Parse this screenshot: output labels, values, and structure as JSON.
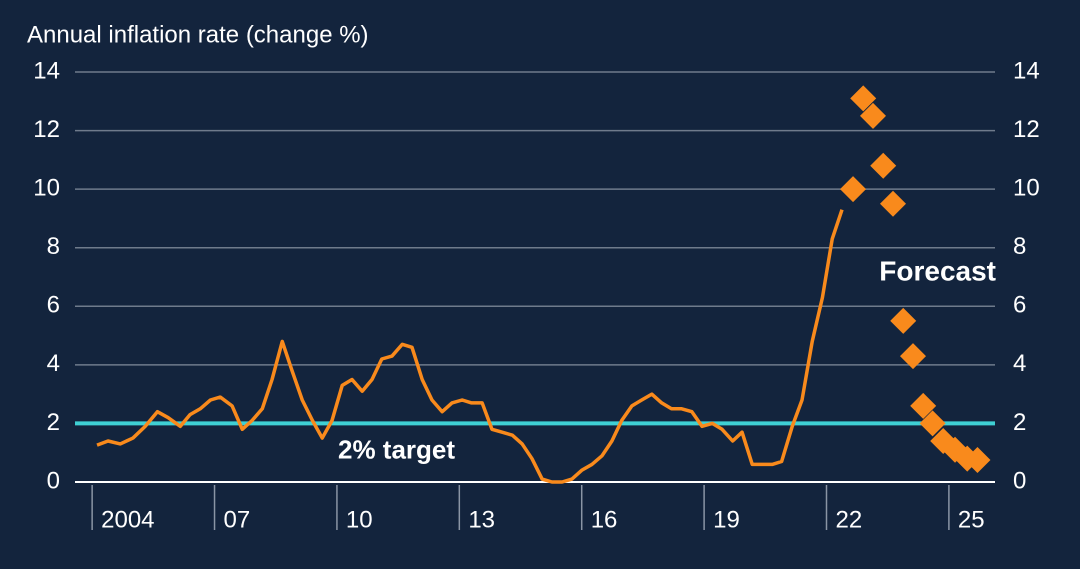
{
  "chart_data": {
    "type": "line",
    "title": "Annual inflation rate (change %)",
    "xlim": [
      2003.58,
      2026.13
    ],
    "xticks": [
      2004,
      {
        "value": 2007,
        "label": "07"
      },
      {
        "value": 2010,
        "label": "10"
      },
      {
        "value": 2013,
        "label": "13"
      },
      {
        "value": 2016,
        "label": "16"
      },
      {
        "value": 2019,
        "label": "19"
      },
      {
        "value": 2022,
        "label": "22"
      },
      {
        "value": 2025,
        "label": "25"
      }
    ],
    "ylim": [
      0,
      14
    ],
    "yticks": [
      0,
      2,
      4,
      6,
      8,
      10,
      12,
      14
    ],
    "y2lim": [
      0,
      14
    ],
    "y2ticks": [
      0,
      2,
      4,
      6,
      8,
      10,
      12,
      14
    ],
    "grid": true,
    "target": {
      "value": 2,
      "label": "2% target",
      "color": "#3fd0d4"
    },
    "series": [
      {
        "color": "#f98a1c",
        "marker": "none",
        "x": [
          2004.12,
          2004.39,
          2004.69,
          2005.0,
          2005.3,
          2005.6,
          2005.86,
          2006.16,
          2006.4,
          2006.65,
          2006.9,
          2007.14,
          2007.43,
          2007.68,
          2007.92,
          2008.17,
          2008.41,
          2008.66,
          2008.9,
          2009.15,
          2009.4,
          2009.64,
          2009.88,
          2010.13,
          2010.37,
          2010.62,
          2010.86,
          2011.1,
          2011.35,
          2011.6,
          2011.84,
          2012.09,
          2012.33,
          2012.58,
          2012.82,
          2013.07,
          2013.3,
          2013.56,
          2013.8,
          2014.05,
          2014.3,
          2014.54,
          2014.78,
          2015.03,
          2015.27,
          2015.52,
          2015.76,
          2016.0,
          2016.25,
          2016.5,
          2016.74,
          2016.98,
          2017.23,
          2017.47,
          2017.72,
          2017.96,
          2018.2,
          2018.45,
          2018.7,
          2018.95,
          2019.2,
          2019.44,
          2019.7,
          2019.93,
          2020.18,
          2020.42,
          2020.67,
          2020.9,
          2021.16,
          2021.4,
          2021.65,
          2021.9,
          2022.14,
          2022.38
        ],
        "values": [
          1.26,
          1.4,
          1.3,
          1.5,
          1.9,
          2.4,
          2.2,
          1.9,
          2.3,
          2.5,
          2.8,
          2.9,
          2.6,
          1.8,
          2.1,
          2.5,
          3.5,
          4.8,
          3.8,
          2.8,
          2.1,
          1.5,
          2.1,
          3.3,
          3.5,
          3.1,
          3.5,
          4.2,
          4.3,
          4.7,
          4.6,
          3.5,
          2.8,
          2.4,
          2.7,
          2.8,
          2.7,
          2.7,
          1.8,
          1.7,
          1.6,
          1.3,
          0.8,
          0.1,
          0.0,
          0.0,
          0.1,
          0.4,
          0.6,
          0.9,
          1.4,
          2.1,
          2.6,
          2.8,
          3.0,
          2.7,
          2.5,
          2.5,
          2.4,
          1.9,
          2.0,
          1.8,
          1.4,
          1.7,
          0.6,
          0.6,
          0.6,
          0.7,
          1.9,
          2.8,
          4.8,
          6.3,
          8.3,
          9.3
        ]
      },
      {
        "name": "Forecast",
        "color": "#f98a1c",
        "marker": "diamond",
        "x": [
          2022.65,
          2022.9,
          2023.14,
          2023.39,
          2023.63,
          2023.88,
          2024.12,
          2024.37,
          2024.6,
          2024.86,
          2025.15,
          2025.45,
          2025.7
        ],
        "values": [
          10.0,
          13.1,
          12.5,
          10.8,
          9.5,
          5.5,
          4.3,
          2.6,
          2.0,
          1.4,
          1.1,
          0.8,
          0.75
        ]
      }
    ]
  }
}
